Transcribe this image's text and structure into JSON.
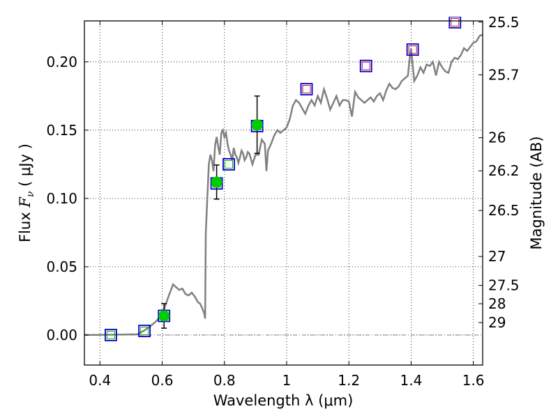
{
  "chart_data": {
    "type": "scatter",
    "title": "",
    "xlabel": "Wavelength  λ (μm)",
    "ylabel": "Flux  F_ν  ( μJy )",
    "ylabel_parts": {
      "prefix": "Flux  ",
      "symbol": "F",
      "subscript": "ν",
      "suffix": "  ( μJy )"
    },
    "y2label": "Magnitude (AB)",
    "xlim": [
      0.35,
      1.63
    ],
    "ylim": [
      -0.022,
      0.23
    ],
    "grid": true,
    "grid_style": "dotted",
    "x_ticks": [
      0.4,
      0.6,
      0.8,
      1.0,
      1.2,
      1.4,
      1.6
    ],
    "x_tick_labels": [
      "0.4",
      "0.6",
      "0.8",
      "1",
      "1.2",
      "1.4",
      "1.6"
    ],
    "y_ticks": [
      0.0,
      0.05,
      0.1,
      0.15,
      0.2
    ],
    "y_tick_labels": [
      "0.00",
      "0.05",
      "0.10",
      "0.15",
      "0.20"
    ],
    "y2_ticks": [
      {
        "label": "25.5",
        "flux": 0.2291
      },
      {
        "label": "25.7",
        "flux": 0.1905
      },
      {
        "label": "26",
        "flux": 0.1445
      },
      {
        "label": "26.2",
        "flux": 0.1202
      },
      {
        "label": "26.5",
        "flux": 0.0912
      },
      {
        "label": "27",
        "flux": 0.0575
      },
      {
        "label": "27.5",
        "flux": 0.0363
      },
      {
        "label": "28",
        "flux": 0.0229
      },
      {
        "label": "29",
        "flux": 0.0091
      }
    ],
    "colors": {
      "model": "#808080",
      "square_outer": "#0000cc",
      "square_inner_blue": "#00aa00",
      "square_inner_red": "#cc0033",
      "detection": "#00cc00",
      "errorbar": "#000000",
      "zero_line": "#808080"
    },
    "series": [
      {
        "name": "model_spectrum",
        "kind": "line",
        "x": [
          0.35,
          0.52,
          0.54,
          0.56,
          0.58,
          0.6,
          0.62,
          0.635,
          0.645,
          0.655,
          0.665,
          0.675,
          0.685,
          0.695,
          0.705,
          0.715,
          0.722,
          0.728,
          0.735,
          0.738,
          0.74,
          0.745,
          0.75,
          0.755,
          0.76,
          0.765,
          0.77,
          0.775,
          0.78,
          0.785,
          0.79,
          0.795,
          0.8,
          0.805,
          0.81,
          0.815,
          0.82,
          0.825,
          0.83,
          0.835,
          0.84,
          0.845,
          0.85,
          0.855,
          0.86,
          0.865,
          0.87,
          0.875,
          0.88,
          0.885,
          0.89,
          0.9,
          0.91,
          0.92,
          0.93,
          0.935,
          0.94,
          0.95,
          0.96,
          0.97,
          0.98,
          0.99,
          1.0,
          1.01,
          1.02,
          1.03,
          1.04,
          1.05,
          1.06,
          1.07,
          1.08,
          1.09,
          1.1,
          1.11,
          1.12,
          1.13,
          1.14,
          1.15,
          1.16,
          1.17,
          1.18,
          1.19,
          1.2,
          1.21,
          1.22,
          1.23,
          1.24,
          1.25,
          1.26,
          1.27,
          1.28,
          1.29,
          1.3,
          1.31,
          1.32,
          1.33,
          1.34,
          1.35,
          1.36,
          1.37,
          1.38,
          1.39,
          1.395,
          1.4,
          1.405,
          1.41,
          1.42,
          1.43,
          1.44,
          1.45,
          1.46,
          1.47,
          1.48,
          1.49,
          1.5,
          1.51,
          1.52,
          1.53,
          1.54,
          1.55,
          1.56,
          1.57,
          1.58,
          1.59,
          1.6,
          1.61,
          1.62,
          1.63
        ],
        "y": [
          0.0,
          0.0005,
          0.003,
          0.006,
          0.01,
          0.015,
          0.028,
          0.037,
          0.035,
          0.033,
          0.034,
          0.03,
          0.029,
          0.031,
          0.028,
          0.024,
          0.023,
          0.02,
          0.016,
          0.012,
          0.074,
          0.1,
          0.125,
          0.132,
          0.128,
          0.12,
          0.139,
          0.145,
          0.138,
          0.132,
          0.148,
          0.15,
          0.145,
          0.148,
          0.14,
          0.135,
          0.132,
          0.128,
          0.137,
          0.132,
          0.13,
          0.126,
          0.13,
          0.135,
          0.133,
          0.128,
          0.13,
          0.134,
          0.133,
          0.129,
          0.125,
          0.132,
          0.132,
          0.143,
          0.14,
          0.12,
          0.135,
          0.14,
          0.146,
          0.15,
          0.148,
          0.15,
          0.152,
          0.158,
          0.168,
          0.172,
          0.17,
          0.166,
          0.162,
          0.168,
          0.172,
          0.168,
          0.175,
          0.17,
          0.18,
          0.173,
          0.165,
          0.17,
          0.175,
          0.168,
          0.172,
          0.172,
          0.171,
          0.16,
          0.178,
          0.174,
          0.172,
          0.17,
          0.172,
          0.174,
          0.171,
          0.175,
          0.177,
          0.172,
          0.179,
          0.184,
          0.181,
          0.18,
          0.182,
          0.186,
          0.188,
          0.19,
          0.202,
          0.21,
          0.198,
          0.186,
          0.19,
          0.196,
          0.192,
          0.198,
          0.197,
          0.2,
          0.19,
          0.2,
          0.196,
          0.193,
          0.192,
          0.2,
          0.203,
          0.202,
          0.205,
          0.21,
          0.208,
          0.211,
          0.214,
          0.215,
          0.219,
          0.22
        ]
      },
      {
        "name": "photometry_squares_blue",
        "kind": "square",
        "x": [
          0.435,
          0.543,
          0.606,
          0.775,
          0.814,
          0.905
        ],
        "y": [
          0.0,
          0.003,
          0.014,
          0.111,
          0.125,
          0.153
        ]
      },
      {
        "name": "photometry_squares_red",
        "kind": "square",
        "x": [
          1.064,
          1.255,
          1.405,
          1.541
        ],
        "y": [
          0.18,
          0.197,
          0.209,
          0.229
        ]
      },
      {
        "name": "detections",
        "kind": "errorbar",
        "x": [
          0.606,
          0.775,
          0.905
        ],
        "y": [
          0.014,
          0.112,
          0.154
        ],
        "yerr": [
          0.009,
          0.0125,
          0.021
        ]
      }
    ]
  }
}
